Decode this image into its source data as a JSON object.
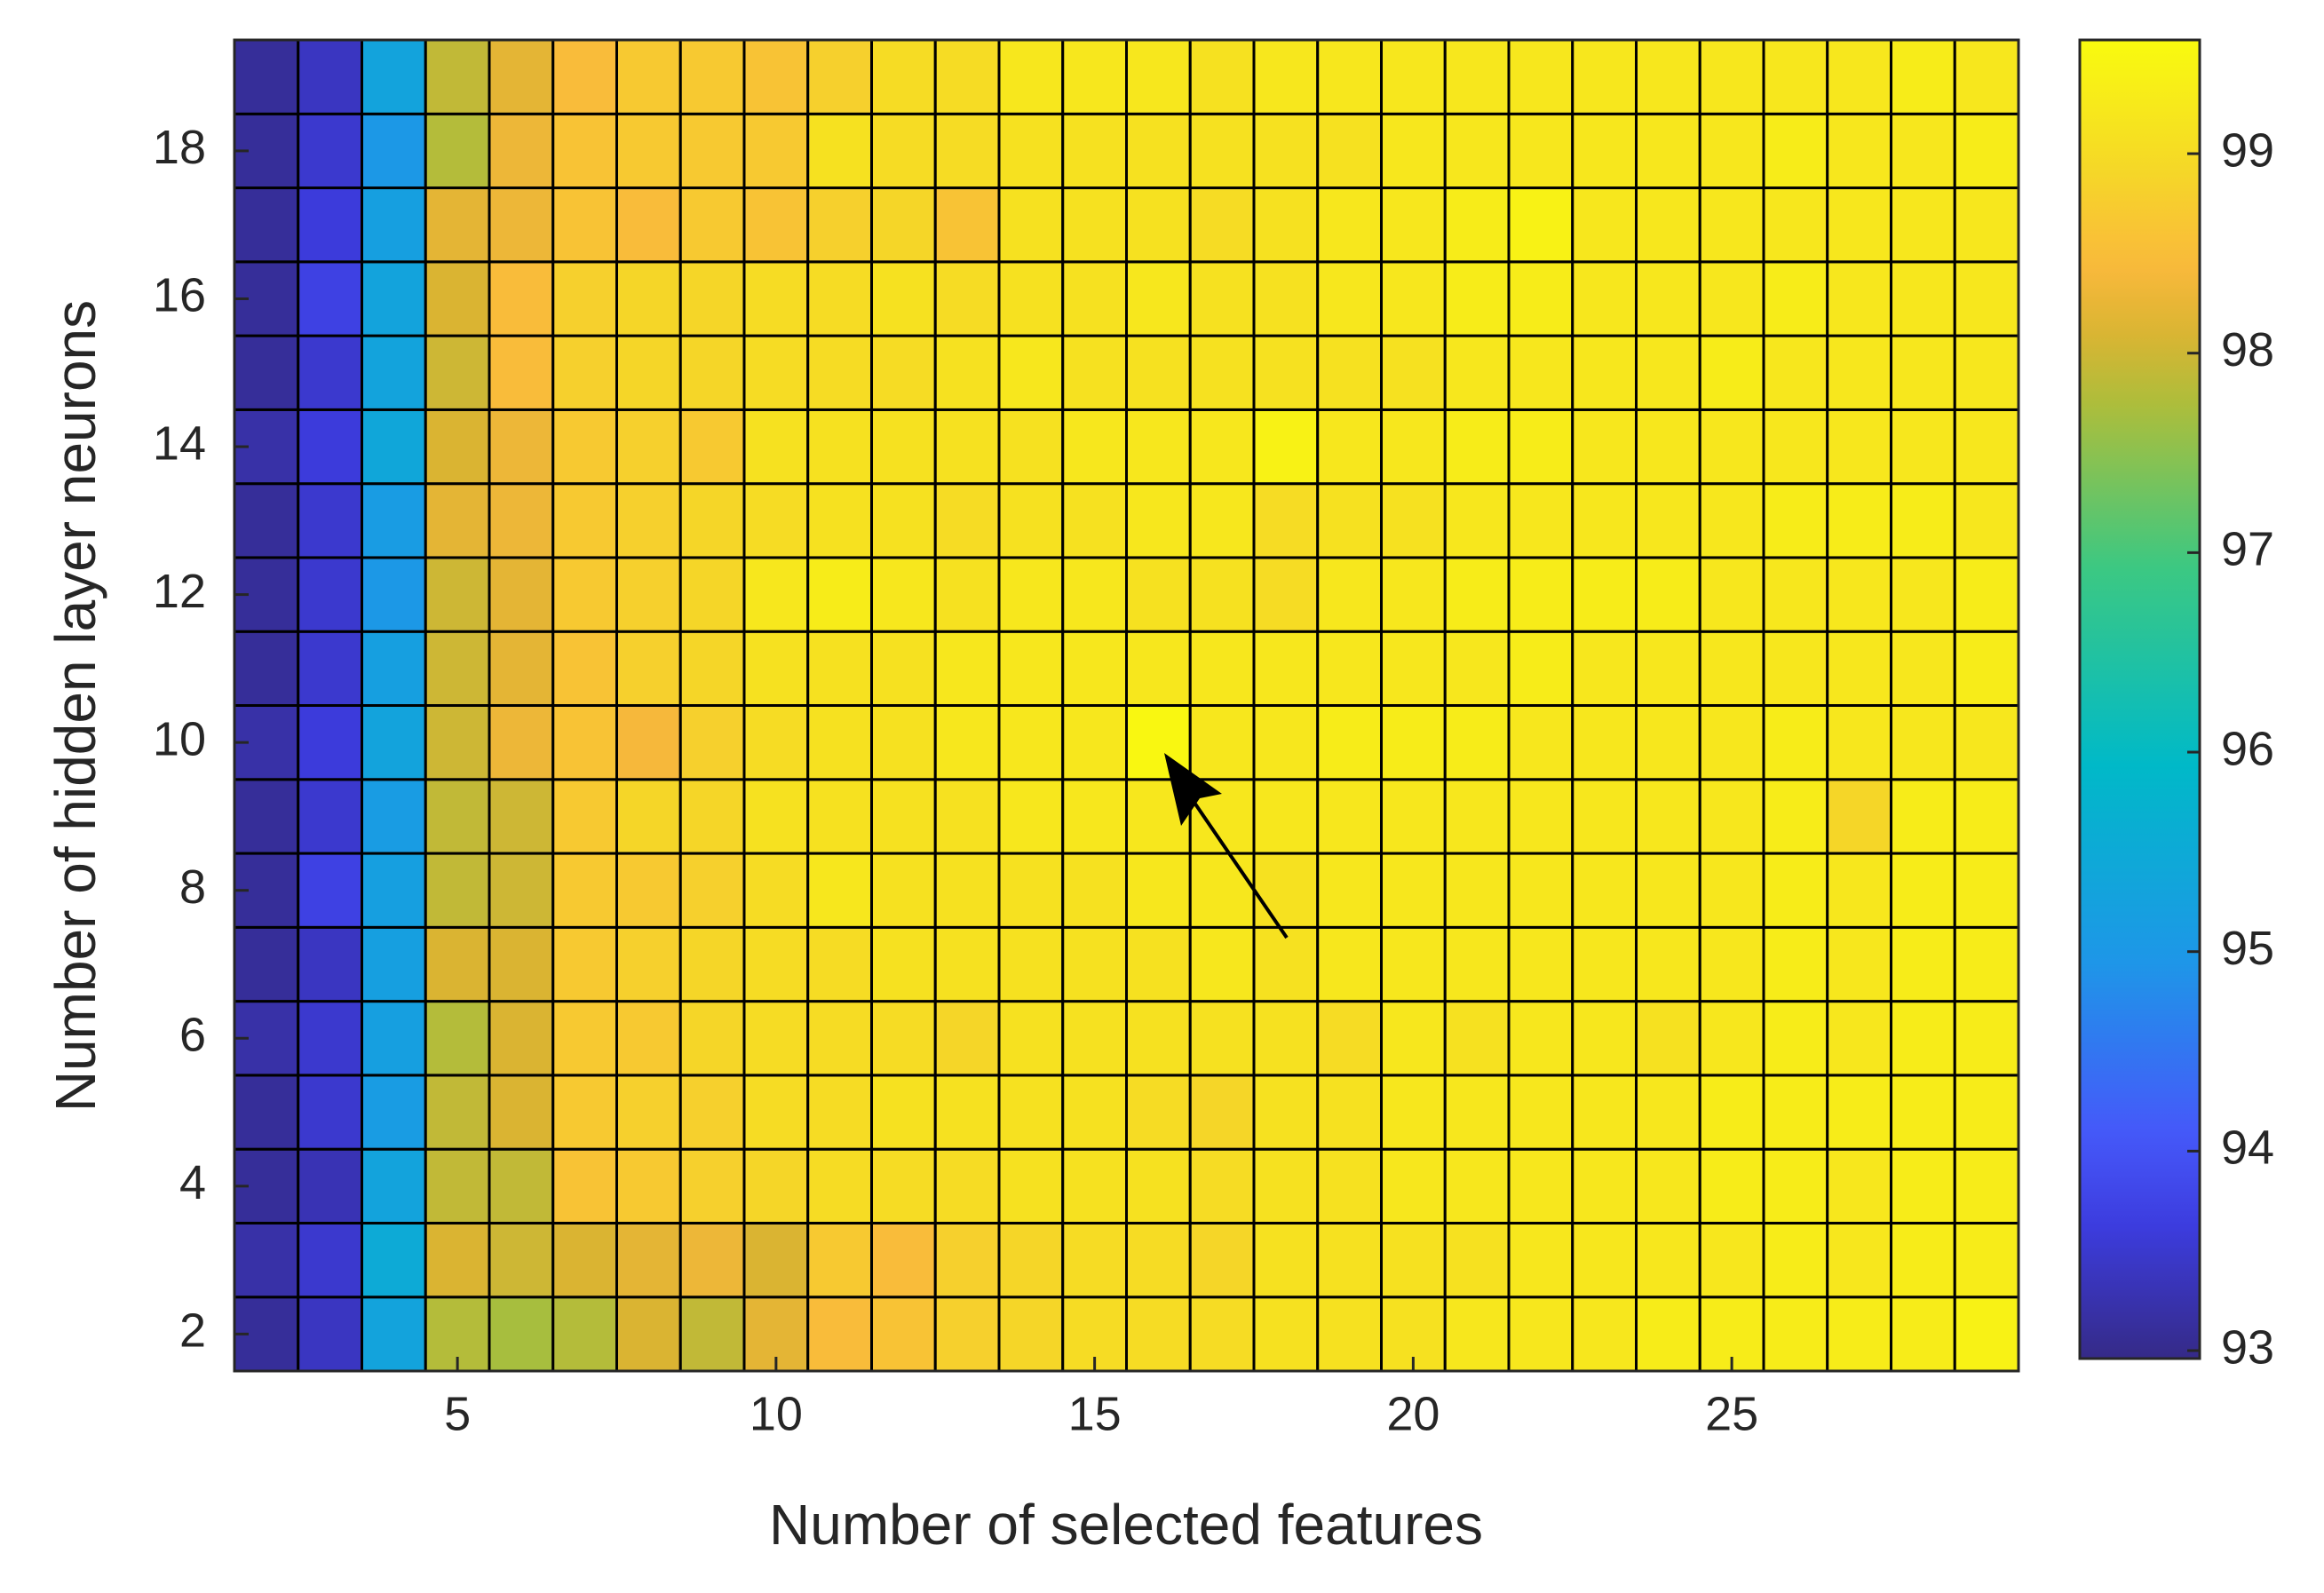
{
  "chart_data": {
    "type": "heatmap",
    "xlabel": "Number of selected features",
    "ylabel": "Number of hidden layer neurons",
    "x": [
      2,
      3,
      4,
      5,
      6,
      7,
      8,
      9,
      10,
      11,
      12,
      13,
      14,
      15,
      16,
      17,
      18,
      19,
      20,
      21,
      22,
      23,
      24,
      25,
      26,
      27,
      28,
      29
    ],
    "y": [
      2,
      3,
      4,
      5,
      6,
      7,
      8,
      9,
      10,
      11,
      12,
      13,
      14,
      15,
      16,
      17,
      18,
      19
    ],
    "z": [
      [
        93.1,
        93.4,
        95.3,
        97.8,
        97.7,
        97.8,
        98.1,
        97.9,
        98.2,
        98.5,
        98.6,
        98.8,
        98.9,
        99.0,
        99.0,
        99.0,
        99.1,
        99.1,
        99.1,
        99.2,
        99.2,
        99.2,
        99.3,
        99.3,
        99.3,
        99.3,
        99.3,
        99.4
      ],
      [
        93.2,
        93.5,
        95.5,
        98.1,
        98.0,
        98.1,
        98.2,
        98.3,
        98.1,
        98.7,
        98.5,
        98.8,
        98.9,
        99.0,
        99.0,
        98.9,
        99.1,
        99.1,
        99.1,
        99.1,
        99.2,
        99.2,
        99.2,
        99.2,
        99.3,
        99.2,
        99.3,
        99.3
      ],
      [
        93.1,
        93.3,
        95.3,
        97.9,
        97.9,
        98.6,
        98.7,
        98.8,
        98.9,
        99.0,
        99.0,
        99.0,
        99.1,
        99.1,
        99.1,
        99.0,
        99.1,
        99.1,
        99.2,
        99.2,
        99.2,
        99.2,
        99.2,
        99.3,
        99.3,
        99.2,
        99.3,
        99.3
      ],
      [
        93.1,
        93.5,
        95.1,
        97.9,
        98.1,
        98.7,
        98.8,
        98.8,
        99.0,
        99.0,
        99.1,
        99.1,
        99.1,
        99.1,
        99.0,
        98.9,
        99.1,
        99.1,
        99.2,
        99.2,
        99.2,
        99.2,
        99.2,
        99.3,
        99.3,
        99.3,
        99.3,
        99.3
      ],
      [
        93.2,
        93.5,
        95.2,
        97.8,
        98.1,
        98.7,
        98.7,
        98.9,
        99.0,
        99.0,
        99.0,
        98.9,
        99.1,
        99.1,
        99.1,
        99.1,
        99.1,
        99.0,
        99.2,
        99.1,
        99.2,
        99.2,
        99.1,
        99.2,
        99.3,
        99.2,
        99.3,
        99.3
      ],
      [
        93.1,
        93.4,
        95.2,
        98.1,
        98.1,
        98.7,
        98.8,
        98.9,
        99.0,
        99.0,
        99.1,
        99.1,
        99.1,
        99.1,
        99.1,
        99.2,
        99.1,
        99.2,
        99.2,
        99.2,
        99.2,
        99.2,
        99.2,
        99.2,
        99.3,
        99.2,
        99.3,
        99.3
      ],
      [
        93.1,
        93.7,
        95.2,
        97.9,
        98.0,
        98.7,
        98.7,
        98.8,
        99.0,
        99.2,
        99.1,
        99.1,
        99.1,
        99.1,
        99.2,
        99.2,
        99.1,
        99.2,
        99.2,
        99.2,
        99.2,
        99.2,
        99.2,
        99.2,
        99.3,
        99.2,
        99.3,
        99.3
      ],
      [
        93.1,
        93.5,
        95.1,
        97.9,
        98.0,
        98.7,
        98.9,
        98.9,
        99.1,
        99.1,
        99.1,
        99.1,
        99.2,
        99.2,
        99.2,
        99.2,
        99.2,
        99.2,
        99.2,
        99.2,
        99.2,
        99.2,
        99.2,
        99.2,
        99.3,
        98.9,
        99.3,
        99.3
      ],
      [
        93.2,
        93.6,
        95.3,
        98.0,
        98.3,
        98.6,
        98.4,
        98.8,
        99.0,
        99.1,
        99.1,
        99.2,
        99.2,
        99.2,
        99.5,
        99.2,
        99.2,
        99.3,
        99.3,
        99.3,
        99.2,
        99.2,
        99.2,
        99.2,
        99.3,
        99.2,
        99.2,
        99.2
      ],
      [
        93.1,
        93.5,
        95.2,
        98.0,
        98.2,
        98.6,
        98.8,
        98.9,
        99.1,
        99.1,
        99.1,
        99.2,
        99.2,
        99.2,
        99.2,
        99.2,
        99.2,
        99.2,
        99.2,
        99.2,
        99.3,
        99.2,
        99.2,
        99.2,
        99.2,
        99.2,
        99.2,
        99.3
      ],
      [
        93.1,
        93.5,
        95.0,
        98.0,
        98.2,
        98.7,
        98.8,
        98.9,
        99.2,
        99.3,
        99.2,
        99.1,
        99.2,
        99.2,
        99.1,
        99.1,
        99.0,
        99.2,
        99.2,
        99.3,
        99.3,
        99.3,
        99.3,
        99.2,
        99.2,
        99.2,
        99.2,
        99.3
      ],
      [
        93.1,
        93.5,
        95.1,
        98.2,
        98.3,
        98.7,
        98.8,
        98.9,
        99.0,
        99.1,
        99.1,
        99.0,
        99.1,
        99.1,
        99.2,
        99.2,
        99.0,
        99.1,
        99.1,
        99.2,
        99.2,
        99.2,
        99.2,
        99.2,
        99.3,
        99.3,
        99.3,
        99.2
      ],
      [
        93.2,
        93.6,
        95.4,
        98.1,
        98.3,
        98.7,
        98.8,
        98.7,
        99.1,
        99.1,
        99.1,
        99.1,
        99.1,
        99.2,
        99.2,
        99.2,
        99.4,
        99.2,
        99.2,
        99.3,
        99.3,
        99.2,
        99.2,
        99.2,
        99.2,
        99.2,
        99.2,
        99.2
      ],
      [
        93.1,
        93.5,
        95.3,
        98.0,
        98.5,
        98.8,
        98.9,
        98.9,
        99.0,
        99.0,
        99.0,
        99.1,
        99.2,
        99.1,
        99.1,
        99.1,
        99.1,
        99.1,
        99.1,
        99.2,
        99.2,
        99.2,
        99.2,
        99.3,
        99.2,
        99.2,
        99.2,
        99.2
      ],
      [
        93.1,
        93.7,
        95.3,
        98.1,
        98.5,
        98.8,
        98.9,
        98.9,
        99.0,
        99.0,
        99.1,
        99.0,
        99.1,
        99.1,
        99.2,
        99.1,
        99.1,
        99.2,
        99.2,
        99.3,
        99.3,
        99.2,
        99.2,
        99.2,
        99.3,
        99.2,
        99.2,
        99.2
      ],
      [
        93.1,
        93.6,
        95.2,
        98.2,
        98.3,
        98.6,
        98.5,
        98.7,
        98.6,
        98.8,
        98.9,
        98.6,
        99.1,
        99.1,
        99.1,
        99.0,
        99.1,
        99.2,
        99.2,
        99.3,
        99.4,
        99.2,
        99.2,
        99.2,
        99.2,
        99.2,
        99.2,
        99.2
      ],
      [
        93.1,
        93.5,
        95.0,
        97.8,
        98.3,
        98.6,
        98.7,
        98.7,
        98.7,
        99.1,
        99.0,
        99.0,
        99.1,
        99.1,
        99.1,
        99.1,
        99.1,
        99.1,
        99.2,
        99.2,
        99.2,
        99.2,
        99.2,
        99.2,
        99.3,
        99.2,
        99.2,
        99.3
      ],
      [
        93.1,
        93.4,
        95.3,
        97.9,
        98.2,
        98.5,
        98.7,
        98.7,
        98.6,
        98.8,
        99.0,
        99.0,
        99.2,
        99.2,
        99.2,
        99.1,
        99.2,
        99.2,
        99.2,
        99.2,
        99.2,
        99.2,
        99.2,
        99.2,
        99.2,
        99.2,
        99.3,
        99.2
      ]
    ],
    "xlim": [
      1.5,
      29.5
    ],
    "xticks": [
      5,
      10,
      15,
      20,
      25
    ],
    "ylim": [
      1.5,
      19.5
    ],
    "yticks": [
      2,
      4,
      6,
      8,
      10,
      12,
      14,
      16,
      18
    ],
    "colormap": "parula",
    "clim": [
      92.96,
      99.57
    ],
    "cticks": [
      93,
      94,
      95,
      96,
      97,
      98,
      99
    ]
  }
}
